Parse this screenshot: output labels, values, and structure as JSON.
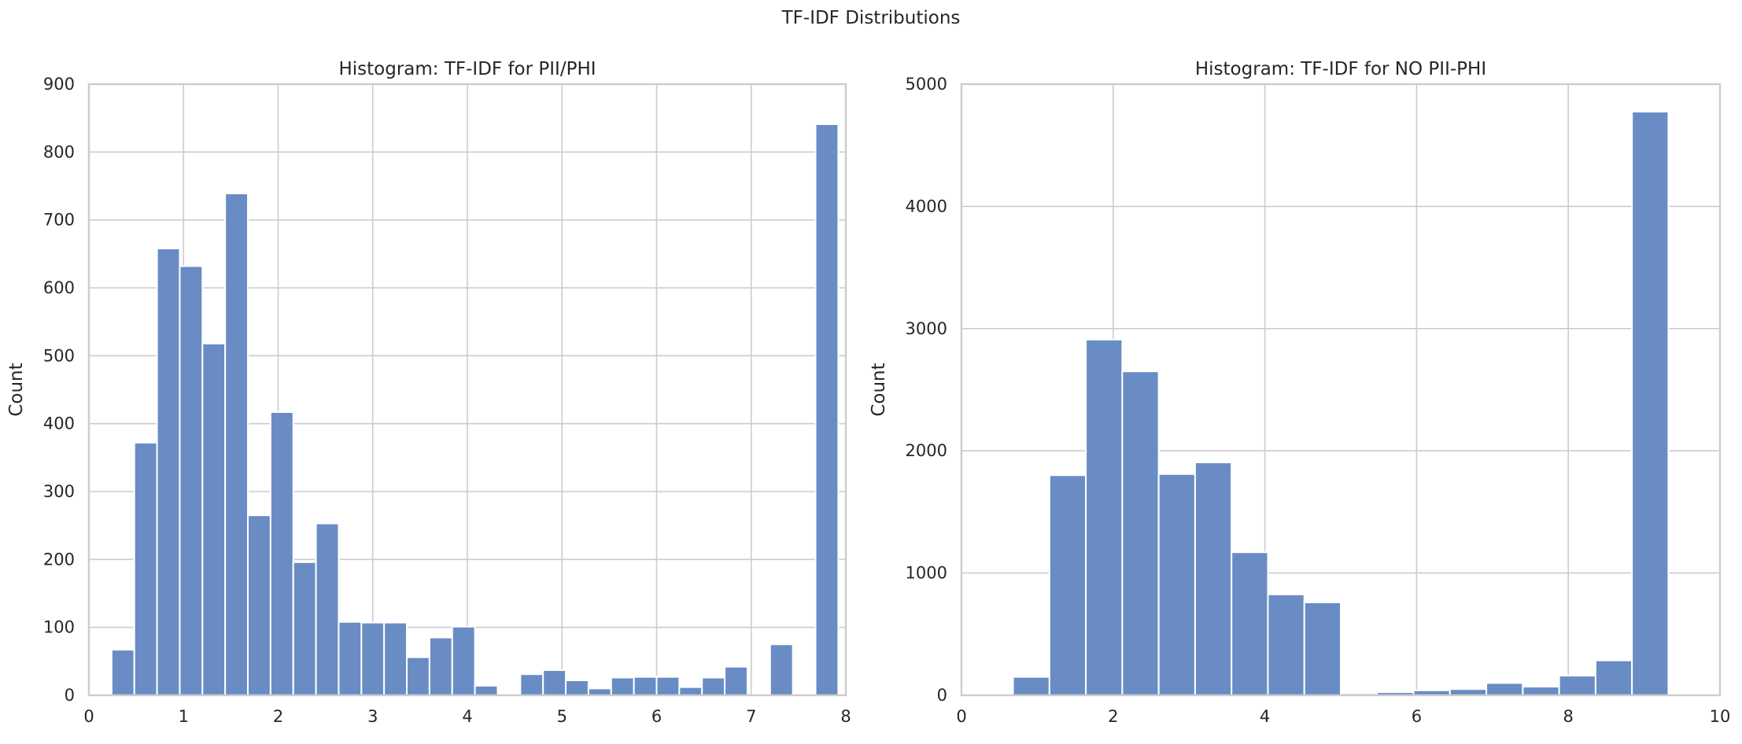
{
  "figure_title": "TF-IDF Distributions",
  "colors": {
    "bar_fill": "#6a8cc4",
    "bar_edge": "#ffffff",
    "grid": "#cccccc",
    "frame": "#cccccc",
    "background": "#ffffff"
  },
  "chart_data": [
    {
      "type": "bar",
      "title": "Histogram: TF-IDF for PII/PHI",
      "xlabel": "",
      "ylabel": "Count",
      "xlim": [
        0,
        8
      ],
      "ylim": [
        0,
        900
      ],
      "xticks": [
        0,
        1,
        2,
        3,
        4,
        5,
        6,
        7,
        8
      ],
      "yticks": [
        0,
        100,
        200,
        300,
        400,
        500,
        600,
        700,
        800,
        900
      ],
      "grid": true,
      "bin_width": 0.24,
      "bins": [
        {
          "x0": 0.24,
          "count": 67
        },
        {
          "x0": 0.48,
          "count": 372
        },
        {
          "x0": 0.72,
          "count": 658
        },
        {
          "x0": 0.96,
          "count": 632
        },
        {
          "x0": 1.2,
          "count": 518
        },
        {
          "x0": 1.44,
          "count": 739
        },
        {
          "x0": 1.68,
          "count": 265
        },
        {
          "x0": 1.92,
          "count": 417
        },
        {
          "x0": 2.16,
          "count": 196
        },
        {
          "x0": 2.4,
          "count": 253
        },
        {
          "x0": 2.64,
          "count": 108
        },
        {
          "x0": 2.88,
          "count": 107
        },
        {
          "x0": 3.12,
          "count": 107
        },
        {
          "x0": 3.36,
          "count": 56
        },
        {
          "x0": 3.6,
          "count": 85
        },
        {
          "x0": 3.84,
          "count": 101
        },
        {
          "x0": 4.08,
          "count": 14
        },
        {
          "x0": 4.32,
          "count": 0
        },
        {
          "x0": 4.56,
          "count": 31
        },
        {
          "x0": 4.8,
          "count": 37
        },
        {
          "x0": 5.04,
          "count": 22
        },
        {
          "x0": 5.28,
          "count": 10
        },
        {
          "x0": 5.52,
          "count": 26
        },
        {
          "x0": 5.76,
          "count": 27
        },
        {
          "x0": 6.0,
          "count": 27
        },
        {
          "x0": 6.24,
          "count": 12
        },
        {
          "x0": 6.48,
          "count": 26
        },
        {
          "x0": 6.72,
          "count": 42
        },
        {
          "x0": 6.96,
          "count": 0
        },
        {
          "x0": 7.2,
          "count": 75
        },
        {
          "x0": 7.44,
          "count": 0
        },
        {
          "x0": 7.68,
          "count": 841
        }
      ]
    },
    {
      "type": "bar",
      "title": "Histogram: TF-IDF for NO PII-PHI",
      "xlabel": "",
      "ylabel": "Count",
      "xlim": [
        0,
        10
      ],
      "ylim": [
        0,
        5000
      ],
      "xticks": [
        0,
        2,
        4,
        6,
        8,
        10
      ],
      "yticks": [
        0,
        1000,
        2000,
        3000,
        4000,
        5000
      ],
      "grid": true,
      "bin_width": 0.48,
      "bins": [
        {
          "x0": 0.2,
          "count": 1
        },
        {
          "x0": 0.68,
          "count": 150
        },
        {
          "x0": 1.16,
          "count": 1800
        },
        {
          "x0": 1.64,
          "count": 2910
        },
        {
          "x0": 2.12,
          "count": 2650
        },
        {
          "x0": 2.6,
          "count": 1810
        },
        {
          "x0": 3.08,
          "count": 1905
        },
        {
          "x0": 3.56,
          "count": 1170
        },
        {
          "x0": 4.04,
          "count": 825
        },
        {
          "x0": 4.52,
          "count": 760
        },
        {
          "x0": 5.0,
          "count": 15
        },
        {
          "x0": 5.48,
          "count": 25
        },
        {
          "x0": 5.96,
          "count": 40
        },
        {
          "x0": 6.44,
          "count": 50
        },
        {
          "x0": 6.92,
          "count": 100
        },
        {
          "x0": 7.4,
          "count": 70
        },
        {
          "x0": 7.88,
          "count": 160
        },
        {
          "x0": 8.36,
          "count": 285
        },
        {
          "x0": 8.84,
          "count": 4775
        }
      ]
    }
  ]
}
